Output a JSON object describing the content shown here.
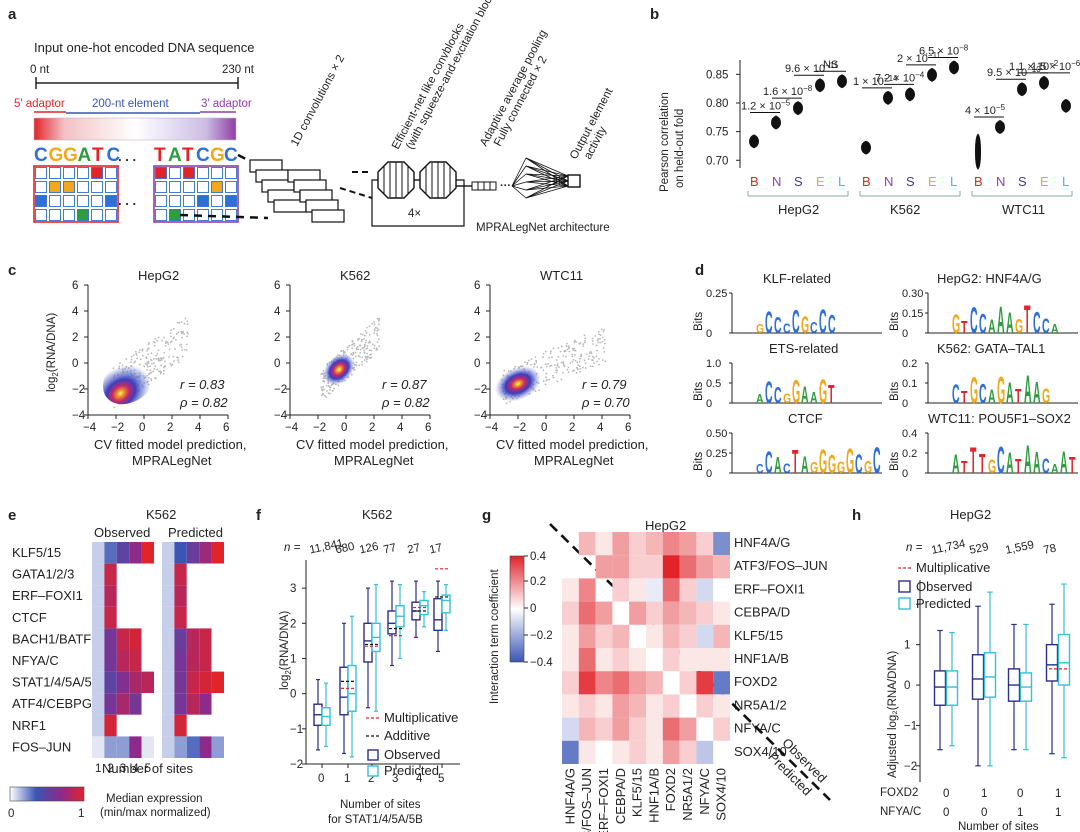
{
  "panel_letters": [
    "a",
    "b",
    "c",
    "d",
    "e",
    "f",
    "g",
    "h"
  ],
  "a": {
    "input_title": "Input one-hot encoded DNA sequence",
    "scale_start": "0 nt",
    "scale_end": "230 nt",
    "adaptor5": "5′ adaptor",
    "element": "200-nt element",
    "adaptor3": "3′ adaptor",
    "seq_left": [
      "C",
      "G",
      "G",
      "A",
      "T",
      "C"
    ],
    "seq_right": [
      "T",
      "A",
      "T",
      "C",
      "G",
      "C"
    ],
    "dots": ". . .",
    "layer1": "1D convolutions × 2",
    "layer2a": "Efficient-net like convblocks",
    "layer2b": "(with squeeze-and-excitation block)",
    "repeat": "4×",
    "layer3a": "Adaptive average pooling",
    "layer3b": "Fully connected × 2",
    "layer4a": "Output element",
    "layer4b": "activity",
    "arch_label": "MPRALegNet architecture"
  },
  "colors": {
    "A": "#2e9c3f",
    "C": "#2f6fd6",
    "G": "#f2a81d",
    "T": "#e0242a",
    "red": "#e0242a",
    "blue": "#3a55b4",
    "purple": "#8e3fa6",
    "cyan": "#35c0d6",
    "navy": "#2c2f86",
    "gray": "#9a9a9a"
  },
  "b": {
    "ylabel1": "Pearson correlation",
    "ylabel2": "on held-out fold",
    "chart_data": {
      "type": "violin",
      "yticks": [
        "0.70",
        "0.75",
        "0.80",
        "0.85"
      ],
      "ylim": [
        0.69,
        0.875
      ],
      "categories": [
        "B",
        "N",
        "S",
        "E",
        "L"
      ],
      "groups": [
        {
          "name": "HepG2",
          "values": [
            0.733,
            0.766,
            0.791,
            0.831,
            0.838
          ]
        },
        {
          "name": "K562",
          "values": [
            0.722,
            0.809,
            0.815,
            0.849,
            0.862
          ]
        },
        {
          "name": "WTC11",
          "values": [
            0.715,
            0.758,
            0.824,
            0.835,
            0.795
          ]
        }
      ],
      "pvalues": [
        {
          "group": 0,
          "from": 0,
          "to": 1,
          "base": "1.2 × 10",
          "exp": "−5"
        },
        {
          "group": 0,
          "from": 1,
          "to": 2,
          "base": "1.6 × 10",
          "exp": "−8"
        },
        {
          "group": 0,
          "from": 2,
          "to": 3,
          "base": "9.6 × 10",
          "exp": "−11"
        },
        {
          "group": 0,
          "from": 3,
          "to": 4,
          "base": "NS",
          "exp": ""
        },
        {
          "group": 1,
          "from": 0,
          "to": 1,
          "base": "1 × 10",
          "exp": "−14"
        },
        {
          "group": 1,
          "from": 1,
          "to": 2,
          "base": "7.2 × 10",
          "exp": "−4"
        },
        {
          "group": 1,
          "from": 2,
          "to": 3,
          "base": "2 × 10",
          "exp": "−11"
        },
        {
          "group": 1,
          "from": 3,
          "to": 4,
          "base": "6.5 × 10",
          "exp": "−8"
        },
        {
          "group": 2,
          "from": 0,
          "to": 1,
          "base": "4 × 10",
          "exp": "−5"
        },
        {
          "group": 2,
          "from": 1,
          "to": 2,
          "base": "9.5 × 10",
          "exp": "−10"
        },
        {
          "group": 2,
          "from": 2,
          "to": 3,
          "base": "1.1 × 10",
          "exp": "−2"
        },
        {
          "group": 2,
          "from": 3,
          "to": 4,
          "base": "1.5 × 10",
          "exp": "−6"
        }
      ]
    }
  },
  "c": {
    "chart_data": {
      "type": "scatter",
      "xticks": [
        "−4",
        "−2",
        "0",
        "2",
        "4",
        "6"
      ],
      "yticks": [
        "−4",
        "−2",
        "0",
        "2",
        "4",
        "6"
      ],
      "ylabel_main": "log",
      "ylabel_sub": "2",
      "ylabel_rest": "(RNA/DNA)",
      "xlabel1": "CV fitted model prediction,",
      "xlabel2": "MPRALegNet",
      "panels": [
        {
          "title": "HepG2",
          "r": "r = 0.83",
          "rho": "ρ = 0.82"
        },
        {
          "title": "K562",
          "r": "r = 0.87",
          "rho": "ρ = 0.82"
        },
        {
          "title": "WTC11",
          "r": "r = 0.79",
          "rho": "ρ = 0.70"
        }
      ]
    }
  },
  "d": {
    "ylabel": "Bits",
    "logos": [
      {
        "title": "KLF-related",
        "yticks": [
          "0",
          "0.25"
        ],
        "seq": "GCCCCGCCC"
      },
      {
        "title": "HepG2: HNF4A/G",
        "yticks": [
          "0",
          "0.15",
          "0.30"
        ],
        "seq": "GTCCAAAGTCCA"
      },
      {
        "title": "ETS-related",
        "yticks": [
          "0",
          "0.5",
          "1.0"
        ],
        "seq": "ACCGGAAGT"
      },
      {
        "title": "K562: GATA–TAL1",
        "yticks": [
          "0",
          "0.1",
          "0.2"
        ],
        "seq": "CTGCAGATAAG"
      },
      {
        "title": "CTCF",
        "yticks": [
          "0",
          "0.25",
          "0.50"
        ],
        "seq": "CCACTAGGGGGCGC"
      },
      {
        "title": "WTC11: POU5F1–SOX2",
        "yticks": [
          "0",
          "0.2",
          "0.4"
        ],
        "seq": "ATTTGCATAACAAT"
      }
    ]
  },
  "e": {
    "title": "K562",
    "observed": "Observed",
    "predicted": "Predicted",
    "xlabel": "Number of sites",
    "xticks": [
      "1",
      "2",
      "3",
      "4",
      "5"
    ],
    "colorbar_label1": "Median expression",
    "colorbar_label2": "(min/max normalized)",
    "cb_min": "0",
    "cb_max": "1",
    "chart_data": {
      "type": "heatmap",
      "rows": [
        "KLF5/15",
        "GATA1/2/3",
        "ERF–FOXI1",
        "CTCF",
        "BACH1/BATF3",
        "NFYA/C",
        "STAT1/4/5A/5B",
        "ATF4/CEBPG",
        "NRF1",
        "FOS–JUN"
      ],
      "observed": [
        [
          0.1,
          0.3,
          0.5,
          0.7,
          1.0
        ],
        [
          0.1,
          0.9,
          null,
          null,
          null
        ],
        [
          0.1,
          0.85,
          null,
          null,
          null
        ],
        [
          0.1,
          0.9,
          null,
          null,
          null
        ],
        [
          0.1,
          0.6,
          0.9,
          0.95,
          null
        ],
        [
          0.1,
          0.6,
          0.85,
          0.9,
          null
        ],
        [
          0.1,
          0.5,
          0.65,
          0.8,
          0.85
        ],
        [
          0.1,
          0.6,
          0.8,
          0.6,
          null
        ],
        [
          0.1,
          0.95,
          null,
          null,
          null
        ],
        [
          0.05,
          0.2,
          0.2,
          0.7,
          0.05
        ]
      ],
      "predicted": [
        [
          0.1,
          0.35,
          0.55,
          0.75,
          1.0
        ],
        [
          0.1,
          0.9,
          null,
          null,
          null
        ],
        [
          0.1,
          0.85,
          null,
          null,
          null
        ],
        [
          0.1,
          0.9,
          null,
          null,
          null
        ],
        [
          0.1,
          0.55,
          0.85,
          0.9,
          null
        ],
        [
          0.1,
          0.6,
          0.85,
          0.9,
          null
        ],
        [
          0.1,
          0.6,
          0.9,
          0.95,
          1.0
        ],
        [
          0.1,
          0.6,
          0.85,
          0.7,
          null
        ],
        [
          0.1,
          0.95,
          null,
          null,
          null
        ],
        [
          0.1,
          0.2,
          0.3,
          0.7,
          0.2
        ]
      ]
    }
  },
  "f": {
    "title": "K562",
    "n_prefix": "n =",
    "xlabel1": "Number of sites",
    "xlabel2": "for STAT1/4/5A/5B",
    "ylabel_main": "log",
    "ylabel_sub": "2",
    "ylabel_rest": "(RNA/DNA)",
    "legend": {
      "mult": "Multiplicative",
      "add": "Additive",
      "obs": "Observed",
      "pred": "Predicted"
    },
    "chart_data": {
      "type": "box",
      "categories": [
        "0",
        "1",
        "2",
        "3",
        "4",
        "5"
      ],
      "n": [
        "11,841",
        "680",
        "126",
        "77",
        "27",
        "17"
      ],
      "yticks": [
        "−2",
        "−1",
        "0",
        "1",
        "2",
        "3"
      ],
      "ylim": [
        -2,
        3.8
      ],
      "observed": [
        {
          "lo": -1.6,
          "q1": -0.9,
          "med": -0.6,
          "q3": -0.3,
          "hi": 0.4
        },
        {
          "lo": -1.7,
          "q1": -0.6,
          "med": -0.1,
          "q3": 0.75,
          "hi": 2.0
        },
        {
          "lo": -0.4,
          "q1": 0.9,
          "med": 1.5,
          "q3": 2.0,
          "hi": 3.0
        },
        {
          "lo": 0.8,
          "q1": 1.7,
          "med": 2.0,
          "q3": 2.35,
          "hi": 3.2
        },
        {
          "lo": 1.6,
          "q1": 2.1,
          "med": 2.35,
          "q3": 2.6,
          "hi": 3.2
        },
        {
          "lo": 1.2,
          "q1": 1.8,
          "med": 2.1,
          "q3": 2.7,
          "hi": 3.2
        }
      ],
      "predicted": [
        {
          "lo": -1.5,
          "q1": -0.9,
          "med": -0.65,
          "q3": -0.4,
          "hi": 0.3
        },
        {
          "lo": -1.8,
          "q1": -0.5,
          "med": 0.0,
          "q3": 0.8,
          "hi": 2.2
        },
        {
          "lo": -0.5,
          "q1": 1.2,
          "med": 1.6,
          "q3": 2.0,
          "hi": 3.1
        },
        {
          "lo": 1.0,
          "q1": 1.9,
          "med": 2.2,
          "q3": 2.5,
          "hi": 3.1
        },
        {
          "lo": 1.9,
          "q1": 2.25,
          "med": 2.5,
          "q3": 2.65,
          "hi": 2.9
        },
        {
          "lo": 1.8,
          "q1": 2.3,
          "med": 2.65,
          "q3": 2.8,
          "hi": 3.1
        }
      ],
      "multiplicative": [
        null,
        0.15,
        1.35,
        1.65,
        2.45,
        3.55
      ],
      "additive": [
        null,
        0.35,
        1.4,
        1.85,
        2.35,
        2.75
      ]
    }
  },
  "g": {
    "title": "HepG2",
    "ylabel": "Interaction term coefficient",
    "diag_obs": "Observed",
    "diag_pred": "Predicted",
    "chart_data": {
      "type": "heatmap",
      "labels": [
        "HNF4A/G",
        "ATF3/FOS–JUN",
        "ERF–FOXI1",
        "CEBPA/D",
        "KLF5/15",
        "HNF1A/B",
        "FOXD2",
        "NR5A1/2",
        "NFYA/C",
        "SOX4/10"
      ],
      "cb_ticks": [
        "0.4",
        "0.2",
        "0",
        "−0.2",
        "−0.4"
      ],
      "clim": [
        -0.45,
        0.45
      ],
      "matrix": [
        [
          0,
          0.15,
          0.05,
          0.2,
          0.1,
          0.15,
          0.25,
          0.2,
          0.1,
          -0.3
        ],
        [
          0,
          0,
          0.2,
          0.2,
          0.1,
          0.1,
          0.45,
          0.3,
          0.2,
          0.15
        ],
        [
          0.05,
          0.25,
          0,
          0.1,
          0.05,
          -0.05,
          0.3,
          0.1,
          -0.1,
          0.0
        ],
        [
          0.1,
          0.3,
          0.2,
          0,
          0.2,
          0.1,
          0.2,
          0.15,
          0.1,
          0.05
        ],
        [
          0.05,
          0.2,
          0.1,
          0.15,
          0,
          0.05,
          0.15,
          0.1,
          -0.1,
          0.15
        ],
        [
          0.05,
          0.3,
          0.05,
          0.1,
          0.05,
          0,
          0.1,
          0.05,
          0.05,
          0.05
        ],
        [
          0.1,
          0.4,
          0.25,
          0.3,
          0.2,
          0.15,
          0,
          0.1,
          0.4,
          -0.35
        ],
        [
          0.05,
          0.1,
          0.05,
          0.2,
          0.15,
          0.05,
          0.1,
          0,
          0.1,
          0.05
        ],
        [
          -0.1,
          0.15,
          0.1,
          0.2,
          0.1,
          0.05,
          0.3,
          0.2,
          0,
          0.1
        ],
        [
          -0.35,
          0.05,
          0.0,
          0.05,
          0.1,
          0.05,
          0.2,
          0.1,
          -0.15,
          0
        ]
      ]
    }
  },
  "h": {
    "title": "HepG2",
    "n_prefix": "n =",
    "ylabel": "Adjusted log₂(RNA/DNA)",
    "legend": {
      "mult": "Multiplicative",
      "obs": "Observed",
      "pred": "Predicted"
    },
    "xlabel": "Number of sites",
    "row1_label": "FOXD2",
    "row2_label": "NFYA/C",
    "row1": [
      "0",
      "1",
      "0",
      "1"
    ],
    "row2": [
      "0",
      "0",
      "1",
      "1"
    ],
    "chart_data": {
      "type": "box",
      "n": [
        "11,734",
        "529",
        "1,559",
        "78"
      ],
      "yticks": [
        "−2",
        "−1",
        "0",
        "1",
        "2"
      ],
      "ylim": [
        -2.4,
        2.6
      ],
      "observed": [
        {
          "lo": -1.6,
          "q1": -0.5,
          "med": -0.05,
          "q3": 0.35,
          "hi": 1.35
        },
        {
          "lo": -2.0,
          "q1": -0.35,
          "med": 0.15,
          "q3": 0.75,
          "hi": 1.95
        },
        {
          "lo": -1.6,
          "q1": -0.4,
          "med": 0.0,
          "q3": 0.4,
          "hi": 1.5
        },
        {
          "lo": -1.7,
          "q1": 0.1,
          "med": 0.5,
          "q3": 1.0,
          "hi": 2.0
        }
      ],
      "predicted": [
        {
          "lo": -1.5,
          "q1": -0.5,
          "med": -0.05,
          "q3": 0.35,
          "hi": 1.3
        },
        {
          "lo": -2.0,
          "q1": -0.3,
          "med": 0.2,
          "q3": 0.8,
          "hi": 2.3
        },
        {
          "lo": -1.6,
          "q1": -0.4,
          "med": -0.05,
          "q3": 0.3,
          "hi": 1.5
        },
        {
          "lo": -1.8,
          "q1": 0.0,
          "med": 0.55,
          "q3": 1.25,
          "hi": 2.5
        }
      ],
      "multiplicative": [
        null,
        null,
        null,
        0.4
      ]
    }
  }
}
